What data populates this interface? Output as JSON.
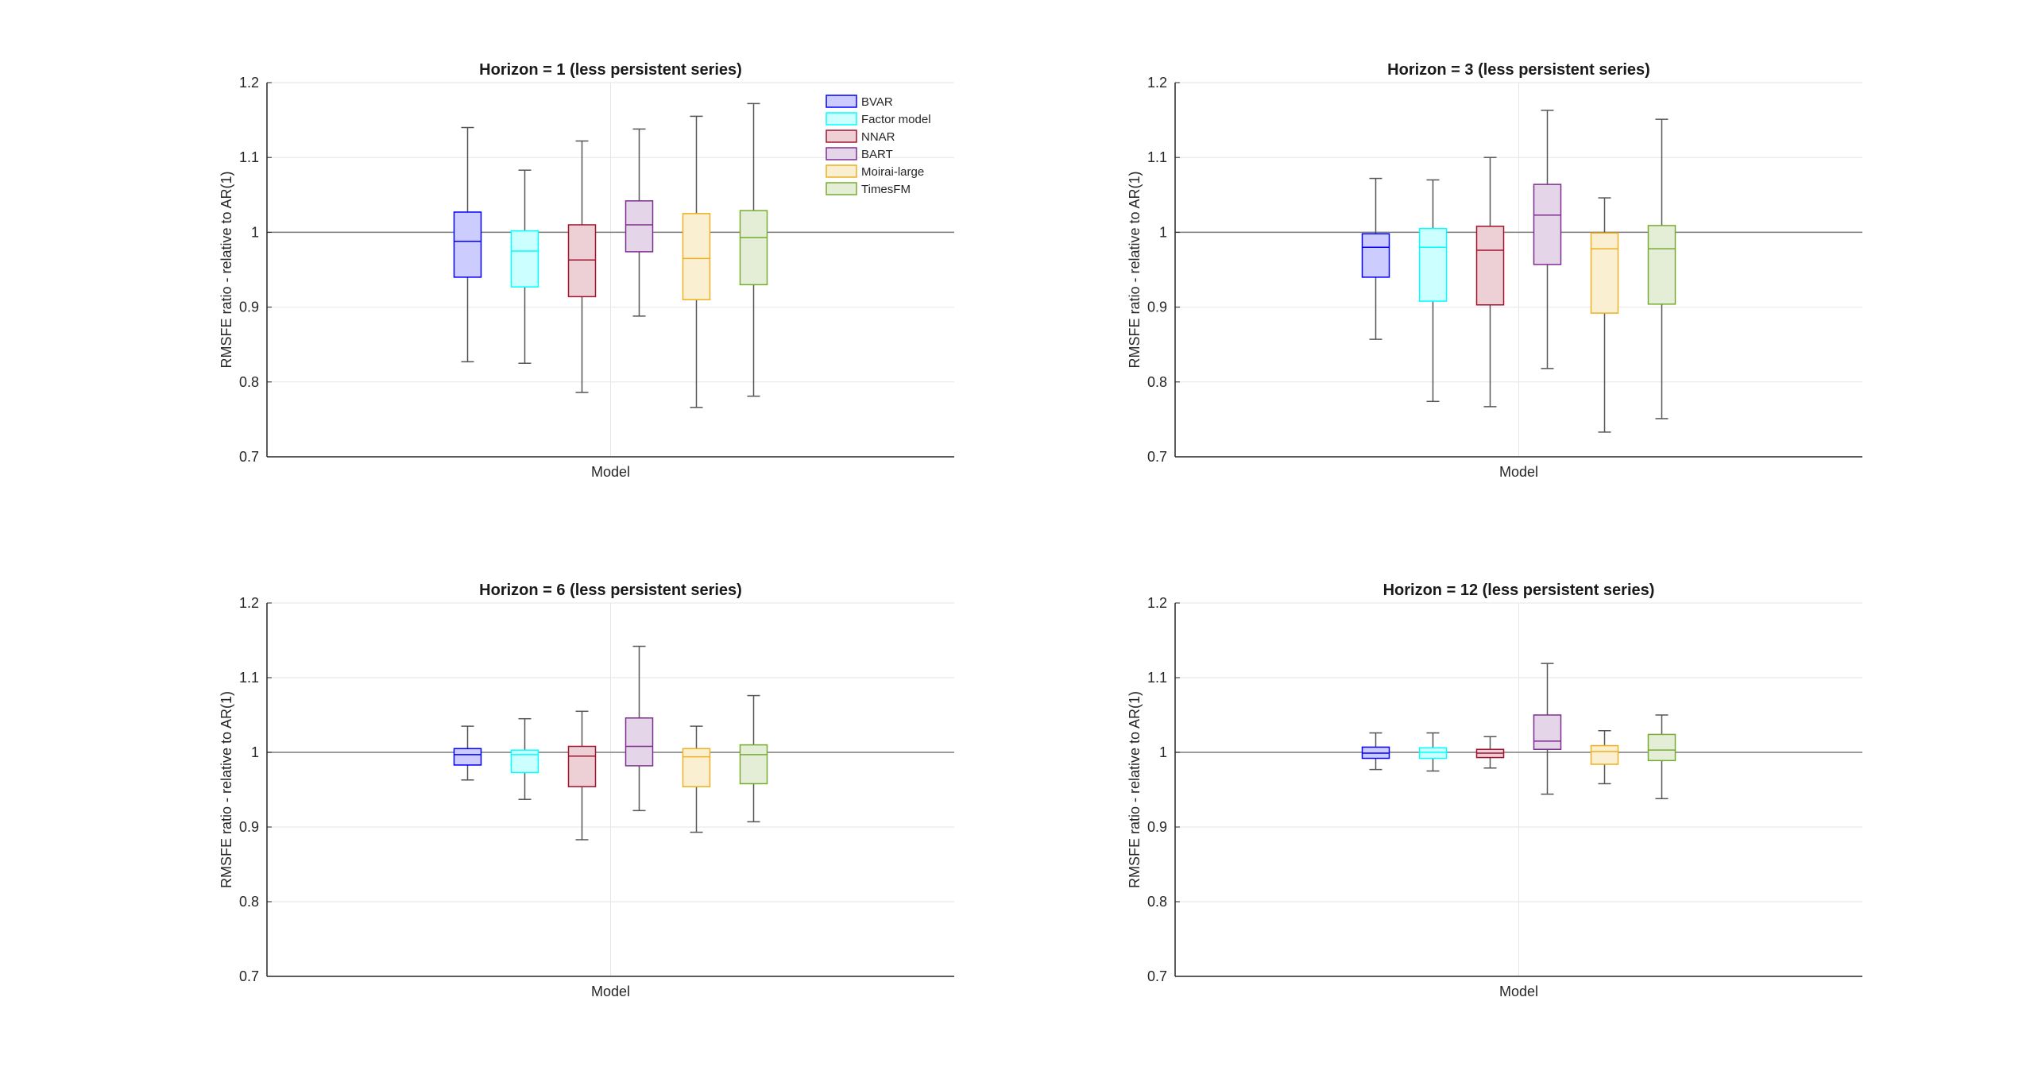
{
  "chart_data": [
    {
      "type": "boxplot",
      "title": "Horizon = 1 (less persistent series)",
      "xlabel": "Model",
      "ylabel": "RMSFE ratio - relative to AR(1)",
      "ylim": [
        0.7,
        1.2
      ],
      "yticks": [
        "0.7",
        "0.8",
        "0.9",
        "1",
        "1.1",
        "1.2"
      ],
      "reference_line": 1,
      "grid": true,
      "legend": "top-right",
      "series": [
        {
          "name": "BVAR",
          "color": "#0000ff",
          "fill": "#ccccff",
          "min": 0.827,
          "q1": 0.94,
          "median": 0.988,
          "q3": 1.027,
          "max": 1.14
        },
        {
          "name": "Factor model",
          "color": "#00ffff",
          "fill": "#ccffff",
          "min": 0.825,
          "q1": 0.927,
          "median": 0.975,
          "q3": 1.002,
          "max": 1.083
        },
        {
          "name": "NNAR",
          "color": "#a2142f",
          "fill": "#ecd0d5",
          "min": 0.786,
          "q1": 0.914,
          "median": 0.963,
          "q3": 1.01,
          "max": 1.122
        },
        {
          "name": "BART",
          "color": "#7e2f8e",
          "fill": "#e5d5e8",
          "min": 0.888,
          "q1": 0.974,
          "median": 1.01,
          "q3": 1.042,
          "max": 1.138
        },
        {
          "name": "Moirai-large",
          "color": "#edb120",
          "fill": "#fbefd2",
          "min": 0.766,
          "q1": 0.91,
          "median": 0.965,
          "q3": 1.025,
          "max": 1.155
        },
        {
          "name": "TimesFM",
          "color": "#77ac30",
          "fill": "#e4eed6",
          "min": 0.781,
          "q1": 0.93,
          "median": 0.993,
          "q3": 1.029,
          "max": 1.172
        }
      ]
    },
    {
      "type": "boxplot",
      "title": "Horizon = 3 (less persistent series)",
      "xlabel": "Model",
      "ylabel": "RMSFE ratio - relative to AR(1)",
      "ylim": [
        0.7,
        1.2
      ],
      "yticks": [
        "0.7",
        "0.8",
        "0.9",
        "1",
        "1.1",
        "1.2"
      ],
      "reference_line": 1,
      "grid": true,
      "series": [
        {
          "name": "BVAR",
          "color": "#0000ff",
          "fill": "#ccccff",
          "min": 0.857,
          "q1": 0.94,
          "median": 0.98,
          "q3": 0.998,
          "max": 1.072
        },
        {
          "name": "Factor model",
          "color": "#00ffff",
          "fill": "#ccffff",
          "min": 0.774,
          "q1": 0.908,
          "median": 0.98,
          "q3": 1.005,
          "max": 1.07
        },
        {
          "name": "NNAR",
          "color": "#a2142f",
          "fill": "#ecd0d5",
          "min": 0.767,
          "q1": 0.903,
          "median": 0.976,
          "q3": 1.008,
          "max": 1.1
        },
        {
          "name": "BART",
          "color": "#7e2f8e",
          "fill": "#e5d5e8",
          "min": 0.818,
          "q1": 0.957,
          "median": 1.023,
          "q3": 1.064,
          "max": 1.163
        },
        {
          "name": "Moirai-large",
          "color": "#edb120",
          "fill": "#fbefd2",
          "min": 0.733,
          "q1": 0.892,
          "median": 0.978,
          "q3": 0.999,
          "max": 1.046
        },
        {
          "name": "TimesFM",
          "color": "#77ac30",
          "fill": "#e4eed6",
          "min": 0.751,
          "q1": 0.904,
          "median": 0.978,
          "q3": 1.009,
          "max": 1.151
        }
      ]
    },
    {
      "type": "boxplot",
      "title": "Horizon = 6 (less persistent series)",
      "xlabel": "Model",
      "ylabel": "RMSFE ratio - relative to AR(1)",
      "ylim": [
        0.7,
        1.2
      ],
      "yticks": [
        "0.7",
        "0.8",
        "0.9",
        "1",
        "1.1",
        "1.2"
      ],
      "reference_line": 1,
      "grid": true,
      "series": [
        {
          "name": "BVAR",
          "color": "#0000ff",
          "fill": "#ccccff",
          "min": 0.963,
          "q1": 0.983,
          "median": 0.997,
          "q3": 1.005,
          "max": 1.035
        },
        {
          "name": "Factor model",
          "color": "#00ffff",
          "fill": "#ccffff",
          "min": 0.937,
          "q1": 0.973,
          "median": 0.997,
          "q3": 1.003,
          "max": 1.045
        },
        {
          "name": "NNAR",
          "color": "#a2142f",
          "fill": "#ecd0d5",
          "min": 0.883,
          "q1": 0.954,
          "median": 0.995,
          "q3": 1.008,
          "max": 1.055
        },
        {
          "name": "BART",
          "color": "#7e2f8e",
          "fill": "#e5d5e8",
          "min": 0.922,
          "q1": 0.982,
          "median": 1.008,
          "q3": 1.046,
          "max": 1.142
        },
        {
          "name": "Moirai-large",
          "color": "#edb120",
          "fill": "#fbefd2",
          "min": 0.893,
          "q1": 0.954,
          "median": 0.994,
          "q3": 1.005,
          "max": 1.035
        },
        {
          "name": "TimesFM",
          "color": "#77ac30",
          "fill": "#e4eed6",
          "min": 0.907,
          "q1": 0.958,
          "median": 0.997,
          "q3": 1.01,
          "max": 1.076
        }
      ]
    },
    {
      "type": "boxplot",
      "title": "Horizon = 12 (less persistent series)",
      "xlabel": "Model",
      "ylabel": "RMSFE ratio - relative to AR(1)",
      "ylim": [
        0.7,
        1.2
      ],
      "yticks": [
        "0.7",
        "0.8",
        "0.9",
        "1",
        "1.1",
        "1.2"
      ],
      "reference_line": 1,
      "grid": true,
      "series": [
        {
          "name": "BVAR",
          "color": "#0000ff",
          "fill": "#ccccff",
          "min": 0.977,
          "q1": 0.992,
          "median": 0.999,
          "q3": 1.007,
          "max": 1.026
        },
        {
          "name": "Factor model",
          "color": "#00ffff",
          "fill": "#ccffff",
          "min": 0.975,
          "q1": 0.992,
          "median": 1.0,
          "q3": 1.006,
          "max": 1.026
        },
        {
          "name": "NNAR",
          "color": "#a2142f",
          "fill": "#ecd0d5",
          "min": 0.979,
          "q1": 0.993,
          "median": 0.999,
          "q3": 1.004,
          "max": 1.021
        },
        {
          "name": "BART",
          "color": "#7e2f8e",
          "fill": "#e5d5e8",
          "min": 0.944,
          "q1": 1.004,
          "median": 1.015,
          "q3": 1.05,
          "max": 1.119
        },
        {
          "name": "Moirai-large",
          "color": "#edb120",
          "fill": "#fbefd2",
          "min": 0.958,
          "q1": 0.984,
          "median": 1.001,
          "q3": 1.009,
          "max": 1.029
        },
        {
          "name": "TimesFM",
          "color": "#77ac30",
          "fill": "#e4eed6",
          "min": 0.938,
          "q1": 0.989,
          "median": 1.003,
          "q3": 1.024,
          "max": 1.05
        }
      ]
    }
  ]
}
